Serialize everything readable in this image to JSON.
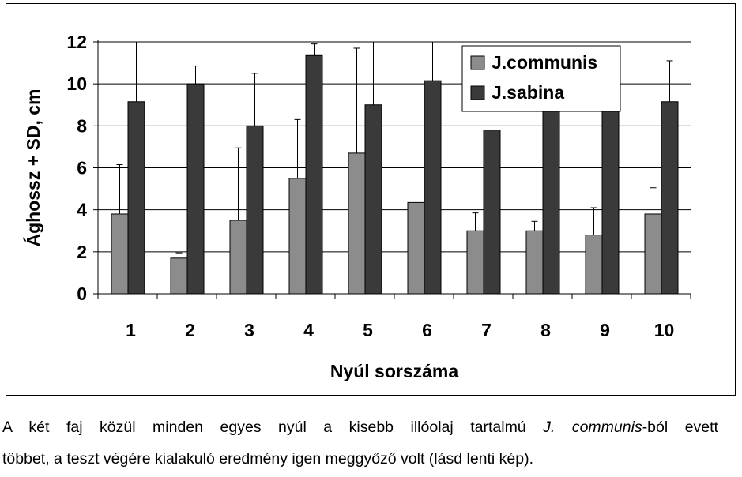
{
  "chart_data": {
    "type": "bar",
    "ylabel": "Ághossz + SD, cm",
    "xlabel": "Nyúl sorszáma",
    "categories": [
      "1",
      "2",
      "3",
      "4",
      "5",
      "6",
      "7",
      "8",
      "9",
      "10"
    ],
    "ylim": [
      0,
      12
    ],
    "yticks": [
      "0",
      "2",
      "4",
      "6",
      "8",
      "10",
      "12"
    ],
    "grid": true,
    "legend_position": "top-right",
    "series": [
      {
        "name": "J.communis",
        "color": "#8c8c8c",
        "values": [
          3.8,
          1.7,
          3.5,
          5.5,
          6.7,
          4.35,
          3.0,
          3.0,
          2.8,
          3.8
        ],
        "sd": [
          2.35,
          0.25,
          3.45,
          2.8,
          5.0,
          1.5,
          0.85,
          0.45,
          1.3,
          1.25
        ]
      },
      {
        "name": "J.sabina",
        "color": "#3a3a3a",
        "values": [
          9.15,
          10.0,
          8.0,
          11.35,
          9.0,
          10.15,
          7.8,
          9.2,
          9.3,
          9.15
        ],
        "sd": [
          3.0,
          0.85,
          2.5,
          0.55,
          3.5,
          2.0,
          1.0,
          0.9,
          0.8,
          1.95
        ]
      }
    ]
  },
  "caption": {
    "line1_part1": "A két faj közül minden egyes nyúl a kisebb illóolaj tartalmú ",
    "line1_italic": "J. communis",
    "line1_part2": "-ból evett",
    "line2": "többet, a teszt végére kialakuló eredmény igen meggyőző volt (lásd lenti kép)."
  }
}
